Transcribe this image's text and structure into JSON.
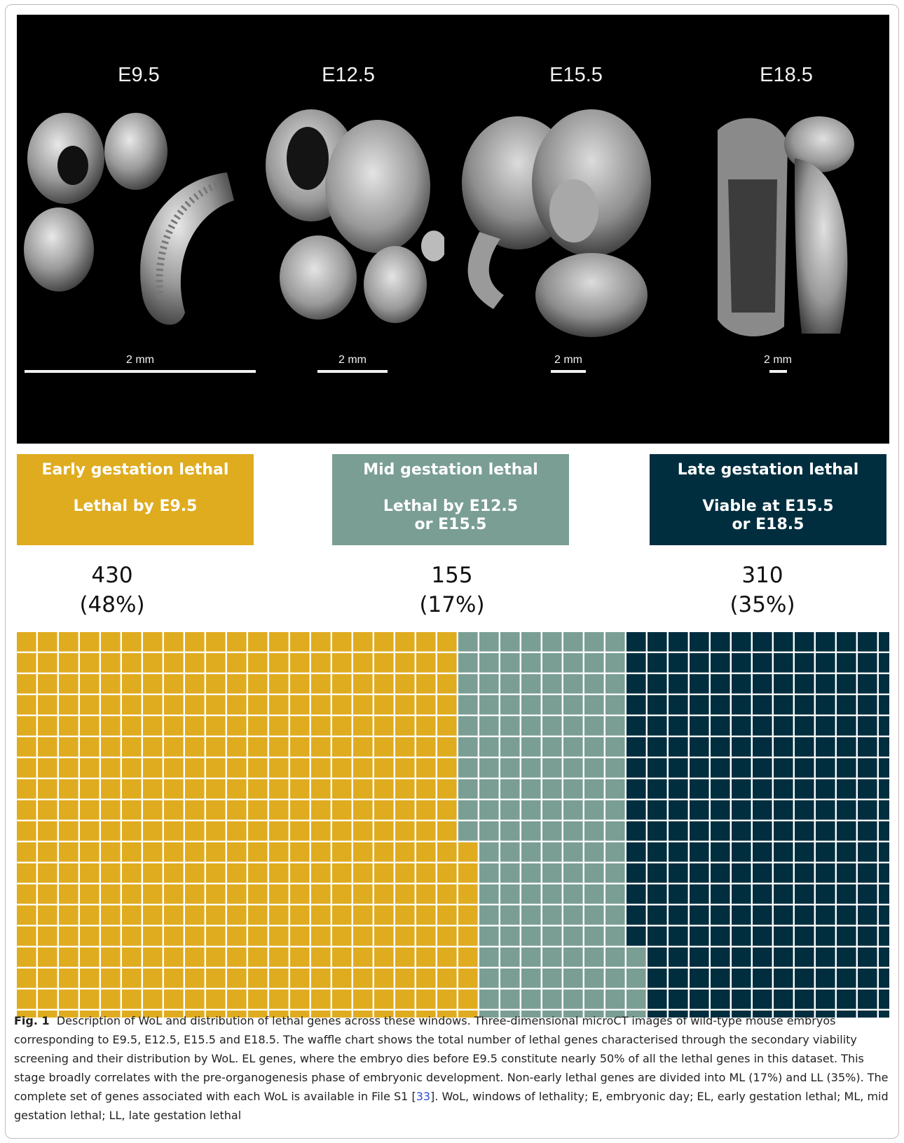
{
  "figure": {
    "stages": [
      "E9.5",
      "E12.5",
      "E15.5",
      "E18.5"
    ],
    "scale_bars": [
      "2 mm",
      "2 mm",
      "2 mm",
      "2 mm"
    ],
    "categories": [
      {
        "title": "Early gestation lethal",
        "subtitle": "Lethal by E9.5",
        "count": "430",
        "percent": "(48%)",
        "color": "#dfac1f"
      },
      {
        "title": "Mid gestation lethal",
        "subtitle": "Lethal by E12.5\nor E15.5",
        "count": "155",
        "percent": "(17%)",
        "color": "#7a9e94"
      },
      {
        "title": "Late gestation lethal",
        "subtitle": "Viable at E15.5\nor E18.5",
        "count": "310",
        "percent": "(35%)",
        "color": "#002e3f"
      }
    ]
  },
  "chart_data": {
    "type": "waffle",
    "cell_unit": 1,
    "rows": 20,
    "categories": [
      "Early gestation lethal",
      "Mid gestation lethal",
      "Late gestation lethal"
    ],
    "values": [
      430,
      155,
      310
    ],
    "percentages": [
      48,
      17,
      35
    ],
    "colors": [
      "#dfac1f",
      "#7a9e94",
      "#002e3f"
    ]
  },
  "caption": {
    "label": "Fig. 1",
    "text_before_ref": "Description of WoL and distribution of lethal genes across these windows. Three-dimensional microCT images of wild-type mouse embryos corresponding to E9.5, E12.5, E15.5 and E18.5. The waffle chart shows the total number of lethal genes characterised through the secondary viability screening and their distribution by WoL. EL genes, where the embryo dies before E9.5 constitute nearly 50% of all the lethal genes in this dataset. This stage broadly correlates with the pre-organogenesis phase of embryonic development. Non-early lethal genes are divided into ML (17%) and LL (35%). The complete set of genes associated with each WoL is available in File S1 [",
    "ref": "33",
    "text_after_ref": "]. WoL, windows of lethality; E, embryonic day; EL, early gestation lethal; ML, mid gestation lethal; LL, late gestation lethal"
  }
}
